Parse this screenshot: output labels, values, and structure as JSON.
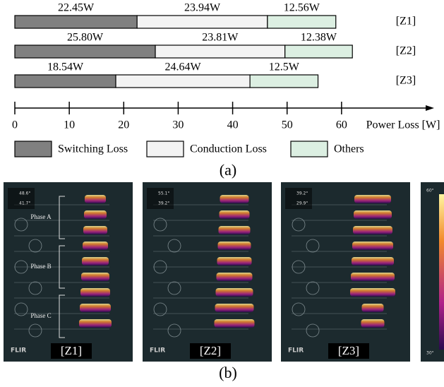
{
  "chart_data": {
    "type": "stacked-barh",
    "categories": [
      "[Z1]",
      "[Z2]",
      "[Z3]"
    ],
    "series": [
      {
        "name": "Switching Loss",
        "color": "#808080",
        "values": [
          22.45,
          25.8,
          18.54
        ],
        "value_labels": [
          "22.45W",
          "25.80W",
          "18.54W"
        ]
      },
      {
        "name": "Conduction Loss",
        "color": "#f3f3f3",
        "values": [
          23.94,
          23.81,
          24.64
        ],
        "value_labels": [
          "23.94W",
          "23.81W",
          "24.64W"
        ]
      },
      {
        "name": "Others",
        "color": "#dcefe2",
        "values": [
          12.56,
          12.38,
          12.5
        ],
        "value_labels": [
          "12.56W",
          "12.38W",
          "12.5W"
        ]
      }
    ],
    "x_label": "Power Loss [W]",
    "xlim": [
      0,
      77
    ],
    "xticks": [
      0,
      10,
      20,
      30,
      40,
      50,
      60
    ],
    "caption": "(a)"
  },
  "figure": {
    "caption": "(b)",
    "brand": "FLIR",
    "phases": [
      "Phase A",
      "Phase B",
      "Phase C"
    ],
    "scale": [
      "60°",
      "30°"
    ],
    "thermal_images": [
      {
        "label": "[Z1]",
        "max": "48.6°",
        "min": "41.7°"
      },
      {
        "label": "[Z2]",
        "max": "55.1°",
        "min": "39.2°"
      },
      {
        "label": "[Z3]",
        "max": "39.2°",
        "min": "29.9°"
      }
    ]
  }
}
